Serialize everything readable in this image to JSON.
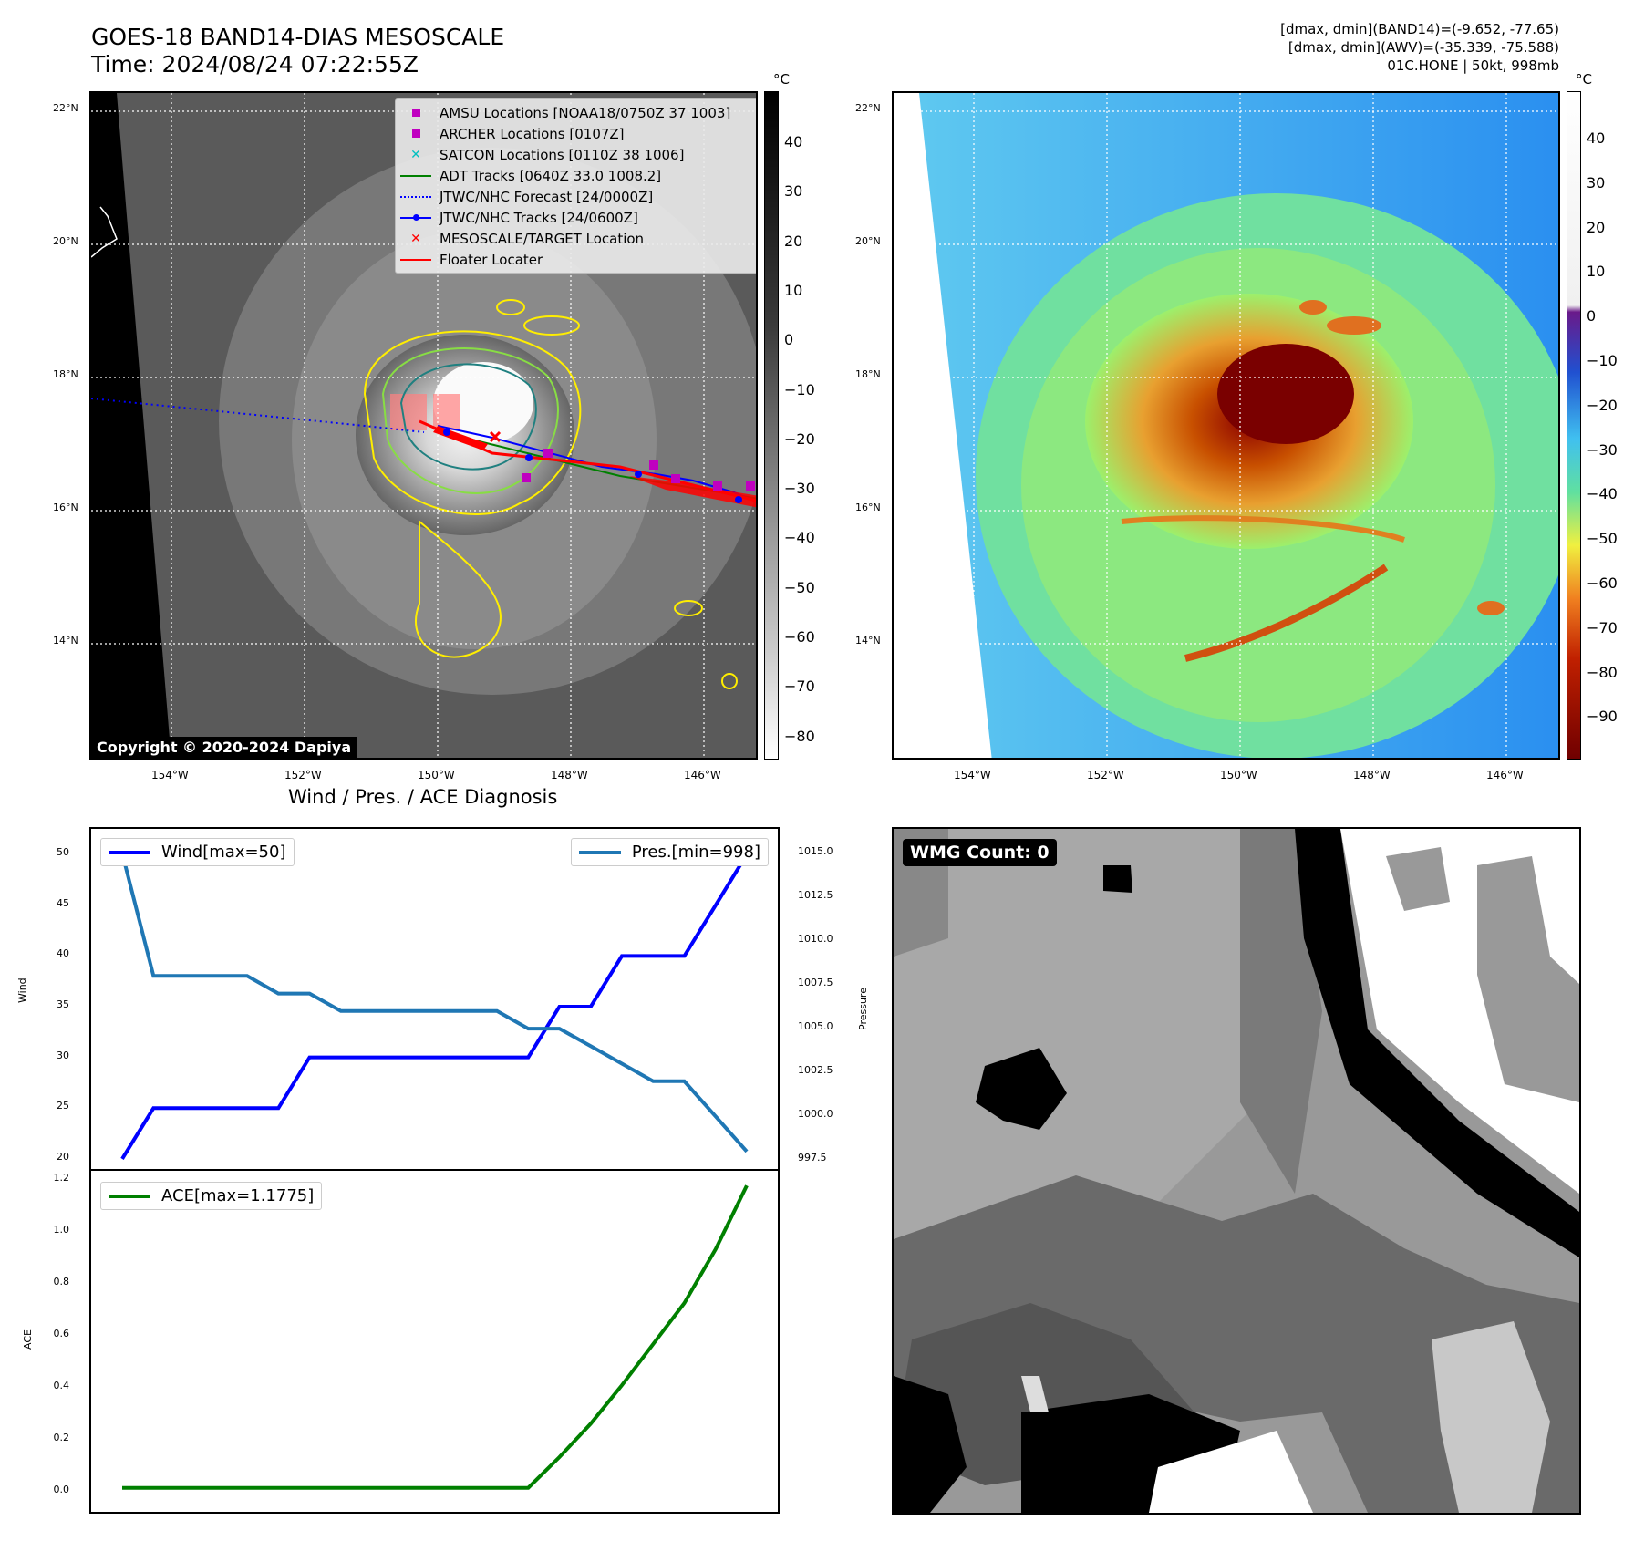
{
  "header": {
    "title_line1": "GOES-18 BAND14-DIAS MESOSCALE",
    "title_line2": "Time: 2024/08/24 07:22:55Z",
    "info_line1": "[dmax, dmin](BAND14)=(-9.652, -77.65)",
    "info_line2": "[dmax, dmin](AWV)=(-35.339, -75.588)",
    "info_line3": "01C.HONE | 50kt, 998mb"
  },
  "map_axes": {
    "lat_labels": [
      "22°N",
      "20°N",
      "18°N",
      "16°N",
      "14°N"
    ],
    "lon_labels": [
      "154°W",
      "152°W",
      "150°W",
      "148°W",
      "146°W"
    ]
  },
  "left_colorbar": {
    "unit": "°C",
    "ticks": [
      "40",
      "30",
      "20",
      "10",
      "0",
      "−10",
      "−20",
      "−30",
      "−40",
      "−50",
      "−60",
      "−70",
      "−80"
    ]
  },
  "right_colorbar": {
    "unit": "°C",
    "ticks": [
      "40",
      "30",
      "20",
      "10",
      "0",
      "−10",
      "−20",
      "−30",
      "−40",
      "−50",
      "−60",
      "−70",
      "−80",
      "−90"
    ]
  },
  "legend": {
    "items": [
      {
        "label": "AMSU Locations [NOAA18/0750Z 37 1003]",
        "symbol": "square",
        "color": "#c000c0"
      },
      {
        "label": "ARCHER Locations [0107Z]",
        "symbol": "square",
        "color": "#c000c0"
      },
      {
        "label": "SATCON Locations [0110Z 38 1006]",
        "symbol": "x",
        "color": "#00c0c0"
      },
      {
        "label": "ADT Tracks [0640Z 33.0 1008.2]",
        "symbol": "line",
        "color": "#008000"
      },
      {
        "label": "JTWC/NHC Forecast [24/0000Z]",
        "symbol": "dotted",
        "color": "#0000ff"
      },
      {
        "label": "JTWC/NHC Tracks [24/0600Z]",
        "symbol": "line-dot",
        "color": "#0000ff"
      },
      {
        "label": "MESOSCALE/TARGET Location",
        "symbol": "x",
        "color": "#ff0000"
      },
      {
        "label": "Floater Locater",
        "symbol": "line",
        "color": "#ff0000"
      }
    ]
  },
  "copyright": "Copyright © 2020-2024 Dapiya",
  "wmg_label": "WMG Count: 0",
  "diagnosis_title": "Wind / Pres. / ACE Diagnosis",
  "chart_data": [
    {
      "type": "line",
      "title": "Wind / Pres. / ACE Diagnosis",
      "ylabel": "Wind",
      "ylim": [
        19,
        51
      ],
      "yticks": [
        "50",
        "45",
        "40",
        "35",
        "30",
        "25",
        "20"
      ],
      "x": [
        0,
        1,
        2,
        3,
        4,
        5,
        6,
        7,
        8,
        9,
        10,
        11,
        12,
        13,
        14,
        15,
        16,
        17,
        18,
        19,
        20
      ],
      "series": [
        {
          "name": "Wind[max=50]",
          "color": "#0000ff",
          "values": [
            20,
            25,
            25,
            25,
            25,
            25,
            30,
            30,
            30,
            30,
            30,
            30,
            30,
            30,
            35,
            35,
            40,
            40,
            40,
            45,
            50
          ]
        }
      ]
    },
    {
      "type": "line",
      "ylabel": "Pressure",
      "ylim": [
        997,
        1015.5
      ],
      "yticks": [
        "1015.0",
        "1012.5",
        "1010.0",
        "1007.5",
        "1005.0",
        "1002.5",
        "1000.0",
        "997.5"
      ],
      "x": [
        0,
        1,
        2,
        3,
        4,
        5,
        6,
        7,
        8,
        9,
        10,
        11,
        12,
        13,
        14,
        15,
        16,
        17,
        18,
        19,
        20
      ],
      "series": [
        {
          "name": "Pres.[min=998]",
          "color": "#1f77b4",
          "values": [
            1015,
            1008,
            1008,
            1008,
            1008,
            1007,
            1007,
            1006,
            1006,
            1006,
            1006,
            1006,
            1006,
            1005,
            1005,
            1004,
            1003,
            1002,
            1002,
            1000,
            998
          ]
        }
      ]
    },
    {
      "type": "line",
      "ylabel": "ACE",
      "ylim": [
        -0.04,
        1.2
      ],
      "yticks": [
        "1.2",
        "1.0",
        "0.8",
        "0.6",
        "0.4",
        "0.2",
        "0.0"
      ],
      "x": [
        0,
        1,
        2,
        3,
        4,
        5,
        6,
        7,
        8,
        9,
        10,
        11,
        12,
        13,
        14,
        15,
        16,
        17,
        18,
        19,
        20
      ],
      "series": [
        {
          "name": "ACE[max=1.1775]",
          "color": "#008000",
          "values": [
            0,
            0,
            0,
            0,
            0,
            0,
            0,
            0,
            0,
            0,
            0,
            0,
            0,
            0,
            0.12,
            0.25,
            0.4,
            0.56,
            0.72,
            0.93,
            1.1775
          ]
        }
      ]
    }
  ]
}
